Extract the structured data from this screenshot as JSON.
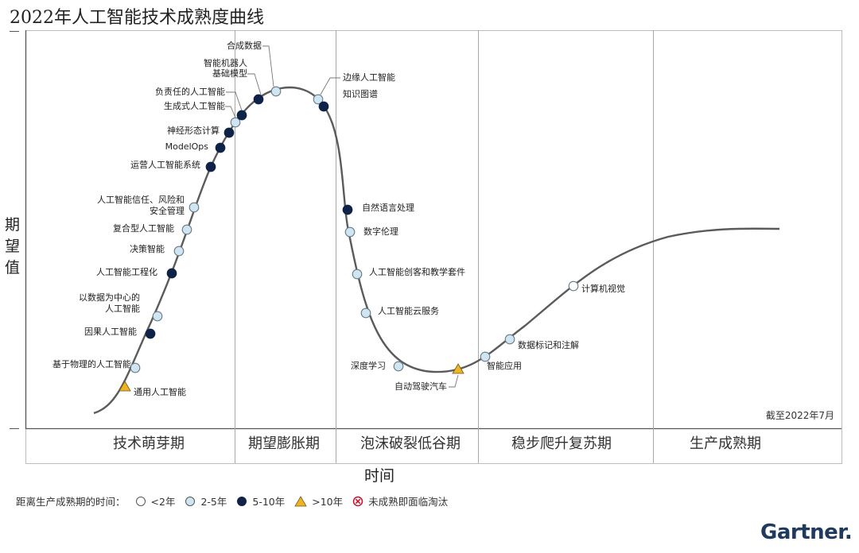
{
  "chart_data": {
    "type": "line",
    "title": "2022年人工智能技术成熟度曲线",
    "xlabel": "时间",
    "ylabel": "期望值",
    "as_of": "截至2022年7月",
    "phases": [
      "技术萌芽期",
      "期望膨胀期",
      "泡沫破裂低谷期",
      "稳步爬升复苏期",
      "生产成熟期"
    ],
    "legend": {
      "title": "距离生产成熟期的时间：",
      "items": [
        {
          "key": "lt2",
          "label": "<2年",
          "shape": "circle",
          "color": "#ffffff"
        },
        {
          "key": "2to5",
          "label": "2-5年",
          "shape": "circle",
          "color": "#cfe5f2"
        },
        {
          "key": "5to10",
          "label": "5-10年",
          "shape": "circle",
          "color": "#0e2347"
        },
        {
          "key": "gt10",
          "label": ">10年",
          "shape": "triangle",
          "color": "#f0b323"
        },
        {
          "key": "obsolete",
          "label": "未成熟即面临淘汰",
          "shape": "cross",
          "color": "#c8102e"
        }
      ]
    },
    "technologies": [
      {
        "name": "通用人工智能",
        "time_to_plateau": "gt10"
      },
      {
        "name": "基于物理的人工智能",
        "time_to_plateau": "2to5"
      },
      {
        "name": "因果人工智能",
        "time_to_plateau": "5to10"
      },
      {
        "name": "以数据为中心的\n人工智能",
        "time_to_plateau": "2to5"
      },
      {
        "name": "人工智能工程化",
        "time_to_plateau": "5to10"
      },
      {
        "name": "决策智能",
        "time_to_plateau": "2to5"
      },
      {
        "name": "复合型人工智能",
        "time_to_plateau": "2to5"
      },
      {
        "name": "人工智能信任、风险和\n安全管理",
        "time_to_plateau": "2to5"
      },
      {
        "name": "运营人工智能系统",
        "time_to_plateau": "5to10"
      },
      {
        "name": "ModelOps",
        "time_to_plateau": "5to10"
      },
      {
        "name": "神经形态计算",
        "time_to_plateau": "5to10"
      },
      {
        "name": "生成式人工智能",
        "time_to_plateau": "2to5"
      },
      {
        "name": "负责任的人工智能",
        "time_to_plateau": "5to10"
      },
      {
        "name": "智能机器人\n基础模型",
        "time_to_plateau": "5to10"
      },
      {
        "name": "合成数据",
        "time_to_plateau": "2to5"
      },
      {
        "name": "边缘人工智能",
        "time_to_plateau": "2to5"
      },
      {
        "name": "知识图谱",
        "time_to_plateau": "5to10"
      },
      {
        "name": "自然语言处理",
        "time_to_plateau": "5to10"
      },
      {
        "name": "数字伦理",
        "time_to_plateau": "2to5"
      },
      {
        "name": "人工智能创客和教学套件",
        "time_to_plateau": "2to5"
      },
      {
        "name": "人工智能云服务",
        "time_to_plateau": "2to5"
      },
      {
        "name": "深度学习",
        "time_to_plateau": "2to5"
      },
      {
        "name": "自动驾驶汽车",
        "time_to_plateau": "gt10"
      },
      {
        "name": "智能应用",
        "time_to_plateau": "2to5"
      },
      {
        "name": "数据标记和注解",
        "time_to_plateau": "2to5"
      },
      {
        "name": "计算机视觉",
        "time_to_plateau": "lt2"
      }
    ]
  },
  "brand": "Gartner."
}
